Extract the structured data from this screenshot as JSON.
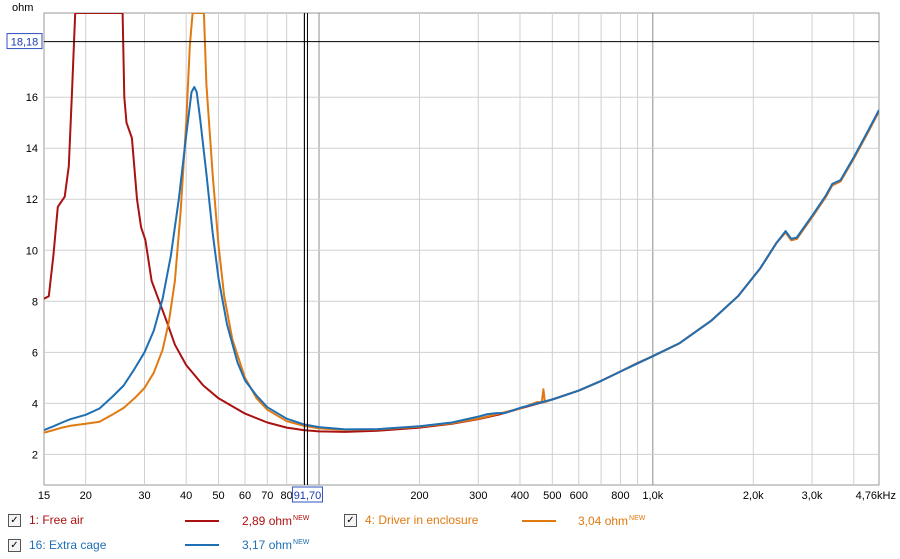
{
  "chart_data": {
    "type": "line",
    "ylabel": "ohm",
    "xunit": "kHz",
    "xscale": "log",
    "xlim": [
      15,
      4760
    ],
    "ylim": [
      0.8,
      19.3
    ],
    "grid": true,
    "yticks": [
      2,
      4,
      6,
      8,
      10,
      12,
      14,
      16
    ],
    "xticks": [
      {
        "v": 15,
        "t": "15"
      },
      {
        "v": 20,
        "t": "20"
      },
      {
        "v": 30,
        "t": "30"
      },
      {
        "v": 40,
        "t": "40"
      },
      {
        "v": 50,
        "t": "50"
      },
      {
        "v": 60,
        "t": "60"
      },
      {
        "v": 70,
        "t": "70"
      },
      {
        "v": 80,
        "t": "80"
      },
      {
        "v": 200,
        "t": "200"
      },
      {
        "v": 300,
        "t": "300"
      },
      {
        "v": 400,
        "t": "400"
      },
      {
        "v": 500,
        "t": "500"
      },
      {
        "v": 600,
        "t": "600"
      },
      {
        "v": 800,
        "t": "800"
      },
      {
        "v": 1000,
        "t": "1,0k"
      },
      {
        "v": 2000,
        "t": "2,0k"
      },
      {
        "v": 3000,
        "t": "3,0k"
      },
      {
        "v": 4760,
        "t": "4,76kHz"
      }
    ],
    "cursor": {
      "x": 91.7,
      "x_label": "91,70",
      "y": 18.18,
      "y_label": "18,18"
    },
    "series": [
      {
        "name": "Free air",
        "color": "#aa1111",
        "data": [
          [
            15,
            8.1
          ],
          [
            15.5,
            8.2
          ],
          [
            16,
            9.8
          ],
          [
            16.5,
            11.7
          ],
          [
            17.3,
            12.1
          ],
          [
            17.8,
            13.3
          ],
          [
            18.2,
            16.2
          ],
          [
            18.6,
            19.3
          ],
          [
            25.8,
            19.3
          ],
          [
            26.1,
            16
          ],
          [
            26.5,
            15.0
          ],
          [
            27.5,
            14.4
          ],
          [
            28.5,
            12.0
          ],
          [
            29.3,
            10.9
          ],
          [
            30.2,
            10.4
          ],
          [
            31.5,
            8.8
          ],
          [
            33,
            8.1
          ],
          [
            35,
            7.2
          ],
          [
            37,
            6.3
          ],
          [
            40,
            5.5
          ],
          [
            45,
            4.7
          ],
          [
            50,
            4.2
          ],
          [
            60,
            3.6
          ],
          [
            70,
            3.25
          ],
          [
            80,
            3.05
          ],
          [
            90,
            2.95
          ],
          [
            100,
            2.9
          ],
          [
            120,
            2.88
          ],
          [
            150,
            2.93
          ],
          [
            200,
            3.05
          ],
          [
            250,
            3.2
          ],
          [
            300,
            3.38
          ],
          [
            350,
            3.58
          ],
          [
            400,
            3.8
          ],
          [
            500,
            4.15
          ],
          [
            600,
            4.5
          ],
          [
            700,
            4.88
          ],
          [
            800,
            5.25
          ],
          [
            900,
            5.58
          ],
          [
            1000,
            5.85
          ],
          [
            1200,
            6.35
          ],
          [
            1500,
            7.25
          ],
          [
            1800,
            8.2
          ],
          [
            2100,
            9.3
          ],
          [
            2350,
            10.3
          ],
          [
            2500,
            10.7
          ],
          [
            2600,
            10.4
          ],
          [
            2700,
            10.45
          ],
          [
            3000,
            11.3
          ],
          [
            3300,
            12.1
          ],
          [
            3450,
            12.55
          ],
          [
            3650,
            12.7
          ],
          [
            4000,
            13.6
          ],
          [
            4400,
            14.6
          ],
          [
            4760,
            15.45
          ]
        ]
      },
      {
        "name": "Driver in enclosure",
        "color": "#e07a10",
        "data": [
          [
            15,
            2.85
          ],
          [
            16,
            2.95
          ],
          [
            17,
            3.05
          ],
          [
            18,
            3.12
          ],
          [
            20,
            3.2
          ],
          [
            22,
            3.28
          ],
          [
            24,
            3.55
          ],
          [
            26,
            3.82
          ],
          [
            28,
            4.2
          ],
          [
            30,
            4.6
          ],
          [
            32,
            5.2
          ],
          [
            34,
            6.1
          ],
          [
            35.5,
            7.2
          ],
          [
            37,
            8.8
          ],
          [
            38.5,
            11.5
          ],
          [
            40,
            15.0
          ],
          [
            41,
            18.0
          ],
          [
            41.8,
            19.3
          ],
          [
            45.2,
            19.3
          ],
          [
            46,
            16.5
          ],
          [
            48,
            13.0
          ],
          [
            50,
            10.2
          ],
          [
            52,
            8.2
          ],
          [
            55,
            6.5
          ],
          [
            60,
            5.0
          ],
          [
            65,
            4.2
          ],
          [
            70,
            3.75
          ],
          [
            80,
            3.3
          ],
          [
            90,
            3.12
          ],
          [
            100,
            3.02
          ],
          [
            120,
            2.96
          ],
          [
            150,
            2.98
          ],
          [
            200,
            3.08
          ],
          [
            250,
            3.22
          ],
          [
            300,
            3.4
          ],
          [
            400,
            3.8
          ],
          [
            450,
            4.05
          ],
          [
            465,
            4.05
          ],
          [
            470,
            4.55
          ],
          [
            475,
            4.05
          ],
          [
            500,
            4.15
          ],
          [
            600,
            4.5
          ],
          [
            700,
            4.88
          ],
          [
            800,
            5.25
          ],
          [
            1000,
            5.85
          ],
          [
            1200,
            6.35
          ],
          [
            1500,
            7.25
          ],
          [
            1800,
            8.2
          ],
          [
            2100,
            9.3
          ],
          [
            2350,
            10.3
          ],
          [
            2500,
            10.7
          ],
          [
            2600,
            10.4
          ],
          [
            2700,
            10.45
          ],
          [
            3000,
            11.3
          ],
          [
            3300,
            12.1
          ],
          [
            3450,
            12.55
          ],
          [
            3650,
            12.7
          ],
          [
            4000,
            13.6
          ],
          [
            4400,
            14.6
          ],
          [
            4760,
            15.45
          ]
        ]
      },
      {
        "name": "Extra cage",
        "color": "#1f6fb4",
        "data": [
          [
            15,
            2.95
          ],
          [
            16,
            3.1
          ],
          [
            17,
            3.25
          ],
          [
            18,
            3.38
          ],
          [
            20,
            3.55
          ],
          [
            22,
            3.8
          ],
          [
            24,
            4.25
          ],
          [
            26,
            4.7
          ],
          [
            28,
            5.35
          ],
          [
            30,
            6.0
          ],
          [
            32,
            6.85
          ],
          [
            34,
            8.1
          ],
          [
            36,
            9.8
          ],
          [
            38,
            12.0
          ],
          [
            40,
            14.5
          ],
          [
            41.5,
            16.2
          ],
          [
            42.3,
            16.4
          ],
          [
            43,
            16.2
          ],
          [
            44,
            15.2
          ],
          [
            46,
            13.0
          ],
          [
            48,
            10.7
          ],
          [
            50,
            8.9
          ],
          [
            53,
            7.1
          ],
          [
            57,
            5.6
          ],
          [
            60,
            4.9
          ],
          [
            65,
            4.3
          ],
          [
            70,
            3.85
          ],
          [
            80,
            3.4
          ],
          [
            90,
            3.18
          ],
          [
            100,
            3.07
          ],
          [
            120,
            2.98
          ],
          [
            150,
            2.99
          ],
          [
            200,
            3.1
          ],
          [
            250,
            3.25
          ],
          [
            300,
            3.48
          ],
          [
            320,
            3.58
          ],
          [
            340,
            3.62
          ],
          [
            360,
            3.62
          ],
          [
            400,
            3.82
          ],
          [
            500,
            4.15
          ],
          [
            600,
            4.5
          ],
          [
            700,
            4.88
          ],
          [
            800,
            5.25
          ],
          [
            1000,
            5.85
          ],
          [
            1200,
            6.35
          ],
          [
            1500,
            7.25
          ],
          [
            1800,
            8.2
          ],
          [
            2100,
            9.3
          ],
          [
            2350,
            10.3
          ],
          [
            2500,
            10.75
          ],
          [
            2600,
            10.45
          ],
          [
            2700,
            10.5
          ],
          [
            3000,
            11.35
          ],
          [
            3300,
            12.15
          ],
          [
            3450,
            12.6
          ],
          [
            3650,
            12.75
          ],
          [
            4000,
            13.65
          ],
          [
            4400,
            14.65
          ],
          [
            4760,
            15.5
          ]
        ]
      }
    ]
  },
  "legend": [
    {
      "id": "free-air",
      "label": "1: Free air",
      "value": "2,89 ohm",
      "badge": "NEW",
      "color": "#aa1111"
    },
    {
      "id": "driver-enclosure",
      "label": "4: Driver in enclosure",
      "value": "3,04 ohm",
      "badge": "NEW",
      "color": "#e07a10"
    },
    {
      "id": "extra-cage",
      "label": "16: Extra cage",
      "value": "3,17 ohm",
      "badge": "NEW",
      "color": "#1f6fb4"
    }
  ]
}
